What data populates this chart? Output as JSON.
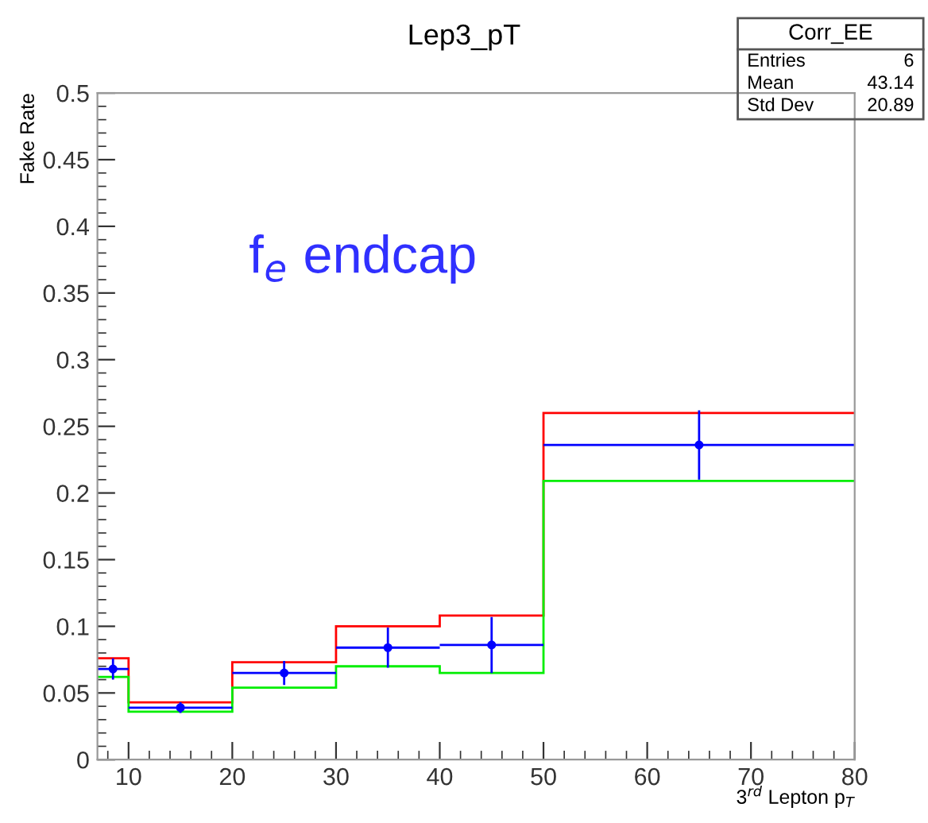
{
  "chart_data": {
    "type": "histogram",
    "title": "Lep3_pT",
    "xlabel": "3$^{rd}$ Lepton p$_{T}$",
    "ylabel": "Fake Rate",
    "bins": [
      7,
      10,
      20,
      30,
      40,
      50,
      80
    ],
    "series": [
      {
        "color": "#ff0000",
        "values": [
          0.076,
          0.043,
          0.073,
          0.1,
          0.108,
          0.26
        ]
      },
      {
        "type": "scatter",
        "marker": "circle",
        "color": "#0000ff",
        "x": [
          8.5,
          15,
          25,
          35,
          45,
          65
        ],
        "values": [
          0.068,
          0.039,
          0.065,
          0.084,
          0.086,
          0.236
        ],
        "errors": [
          0.008,
          0.004,
          0.009,
          0.015,
          0.021,
          0.026
        ],
        "xerrors": [
          1.5,
          5,
          5,
          5,
          5,
          15
        ]
      },
      {
        "color": "#00ee00",
        "values": [
          0.062,
          0.036,
          0.054,
          0.07,
          0.065,
          0.209
        ]
      }
    ],
    "xlim": [
      7,
      80
    ],
    "xticks": [
      10,
      20,
      30,
      40,
      50,
      60,
      70,
      80
    ],
    "ylim": [
      0,
      0.5
    ],
    "yticks": [
      0,
      0.05,
      0.1,
      0.15,
      0.2,
      0.25,
      0.3,
      0.35,
      0.4,
      0.45,
      0.5
    ],
    "grid": false,
    "legend": false,
    "annotations": [
      "f$_{e}$ endcap",
      "Corr_EE",
      "Entries",
      "6",
      "Mean",
      "43.14",
      "Std Dev",
      "20.89"
    ]
  }
}
